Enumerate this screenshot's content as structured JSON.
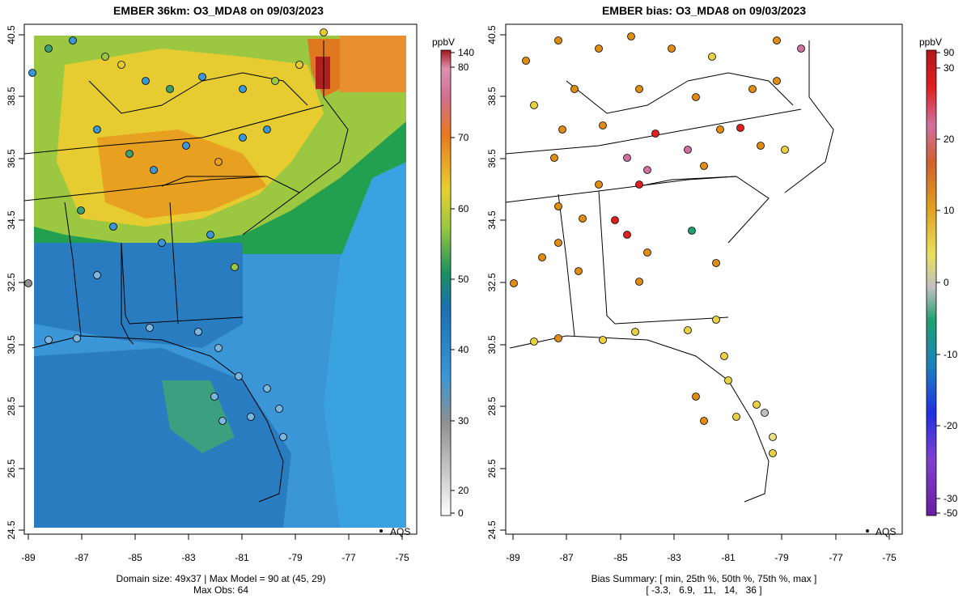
{
  "left_panel": {
    "title": "EMBER 36km: O3_MDA8 on 09/03/2023",
    "caption_line1": "Domain size: 49x37 | Max Model = 90 at (45, 29)",
    "caption_line2": "Max Obs: 64",
    "legend_label": "AQS",
    "colorbar": {
      "unit": "ppbV",
      "ticks": [
        "0",
        "20",
        "30",
        "40",
        "50",
        "60",
        "70",
        "80",
        "140"
      ]
    }
  },
  "right_panel": {
    "title": "EMBER bias: O3_MDA8 on 09/03/2023",
    "caption_line1": "Bias Summary: [ min, 25th %, 50th %, 75th %, max ]",
    "caption_line2": "[ -3.3,   6.9,   11,   14,   36 ]",
    "legend_label": "AQS",
    "colorbar": {
      "unit": "ppbV",
      "ticks": [
        "-50",
        "-30",
        "-20",
        "-10",
        "0",
        "10",
        "20",
        "30",
        "90"
      ]
    }
  },
  "axes": {
    "x_ticks": [
      "-89",
      "-87",
      "-85",
      "-83",
      "-81",
      "-79",
      "-77",
      "-75"
    ],
    "y_ticks": [
      "24.5",
      "26.5",
      "28.5",
      "30.5",
      "32.5",
      "34.5",
      "36.5",
      "38.5",
      "40.5"
    ]
  },
  "colors": {
    "model_blue": "#3a96d6",
    "model_green": "#20a050",
    "model_yellow": "#e8d030",
    "model_orange": "#e89820",
    "model_red": "#b02020",
    "bias_orange": "#e08c10",
    "bias_yellow": "#e8d040"
  }
}
